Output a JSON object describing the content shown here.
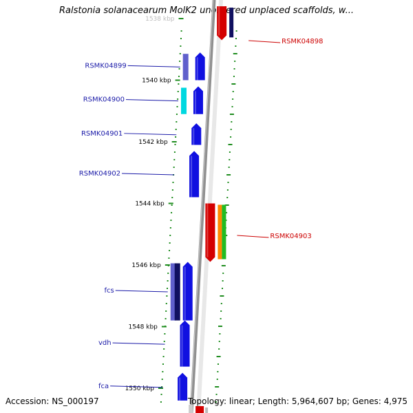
{
  "title": "Ralstonia solanacearum MolK2 unordered unplaced scaffolds, w...",
  "accession": "Accession: NS_000197",
  "summary": "Topology: linear; Length: 5,964,607 bp; Genes: 4,975",
  "ruler": [
    {
      "label": "1538 kbp",
      "kbp": 1538
    },
    {
      "label": "1540 kbp",
      "kbp": 1540
    },
    {
      "label": "1542 kbp",
      "kbp": 1542
    },
    {
      "label": "1544 kbp",
      "kbp": 1544
    },
    {
      "label": "1546 kbp",
      "kbp": 1546
    },
    {
      "label": "1548 kbp",
      "kbp": 1548
    },
    {
      "label": "1550 kbp",
      "kbp": 1550
    }
  ],
  "genes": [
    {
      "label": "RSMK04898",
      "strand": "reverse",
      "color": "#d40000",
      "start_kbp": 1537.6,
      "end_kbp": 1538.7
    },
    {
      "label": "RSMK04899",
      "strand": "forward",
      "color": "#1010e0",
      "start_kbp": 1539.1,
      "end_kbp": 1540.0
    },
    {
      "label": "RSMK04900",
      "strand": "forward",
      "color": "#1010e0",
      "start_kbp": 1540.2,
      "end_kbp": 1541.1
    },
    {
      "label": "RSMK04901",
      "strand": "forward",
      "color": "#1010e0",
      "start_kbp": 1541.4,
      "end_kbp": 1542.1
    },
    {
      "label": "RSMK04902",
      "strand": "forward",
      "color": "#1010e0",
      "start_kbp": 1542.3,
      "end_kbp": 1543.8
    },
    {
      "label": "RSMK04903",
      "strand": "reverse",
      "color": "#d40000",
      "start_kbp": 1544.0,
      "end_kbp": 1545.9
    },
    {
      "label": "fcs",
      "strand": "forward",
      "color": "#1010e0",
      "start_kbp": 1545.9,
      "end_kbp": 1547.8
    },
    {
      "label": "vdh",
      "strand": "forward",
      "color": "#1010e0",
      "start_kbp": 1547.8,
      "end_kbp": 1549.3
    },
    {
      "label": "fca",
      "strand": "forward",
      "color": "#1010e0",
      "start_kbp": 1549.5,
      "end_kbp": 1550.4
    }
  ],
  "colors": {
    "forward_label": "#1a1aa8",
    "reverse_label": "#cc0000",
    "tick": "#1e8c1e",
    "backbone": "#909090",
    "cyan_track": "#00d8e0",
    "purple_track": "#6060cc",
    "navy_track": "#101060",
    "orange_track": "#ff8800",
    "green_track": "#22bb22"
  }
}
